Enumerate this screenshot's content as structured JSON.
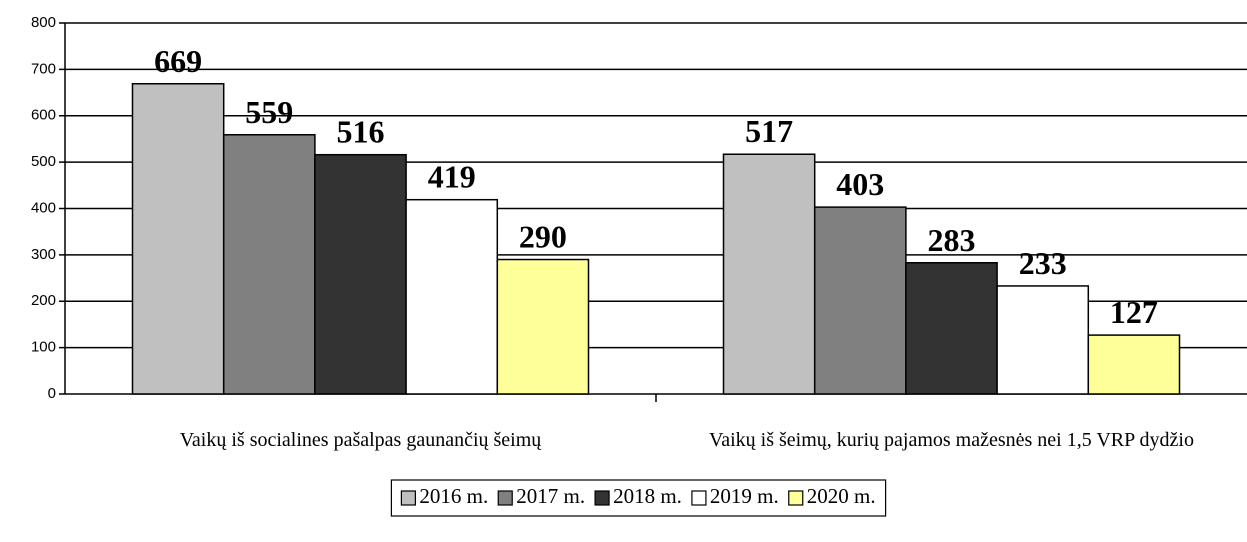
{
  "chart_data": {
    "type": "bar",
    "categories": [
      "Vaikų iš socialines pašalpas gaunančių šeimų",
      "Vaikų iš šeimų, kurių pajamos mažesnės nei 1,5 VRP dydžio"
    ],
    "series": [
      {
        "name": "2016 m.",
        "color": "#c0c0c0",
        "values": [
          669,
          517
        ]
      },
      {
        "name": "2017 m.",
        "color": "#808080",
        "values": [
          559,
          403
        ]
      },
      {
        "name": "2018 m.",
        "color": "#333333",
        "values": [
          516,
          283
        ]
      },
      {
        "name": "2019 m.",
        "color": "#ffffff",
        "values": [
          419,
          233
        ]
      },
      {
        "name": "2020 m.",
        "color": "#ffff99",
        "values": [
          290,
          127
        ]
      }
    ],
    "ylim": [
      0,
      800
    ],
    "yticks": [
      0,
      100,
      200,
      300,
      400,
      500,
      600,
      700,
      800
    ],
    "grid": true,
    "legend": "bottom"
  }
}
